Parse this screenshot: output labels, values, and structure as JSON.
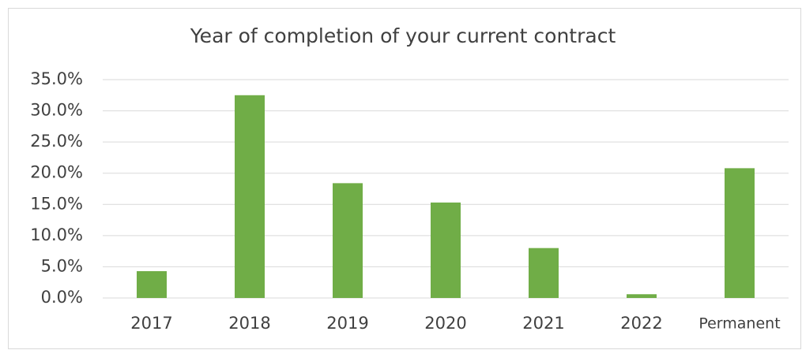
{
  "chart_data": {
    "type": "bar",
    "title": "Year of completion of your current contract",
    "categories": [
      "2017",
      "2018",
      "2019",
      "2020",
      "2021",
      "2022",
      "Permanent"
    ],
    "values": [
      4.3,
      32.5,
      18.4,
      15.3,
      8.0,
      0.6,
      20.8
    ],
    "color": "#70ad47",
    "ylim": [
      0,
      35
    ],
    "yticks": [
      {
        "value": 0,
        "label": "0.0%"
      },
      {
        "value": 5,
        "label": "5.0%"
      },
      {
        "value": 10,
        "label": "10.0%"
      },
      {
        "value": 15,
        "label": "15.0%"
      },
      {
        "value": 20,
        "label": "20.0%"
      },
      {
        "value": 25,
        "label": "25.0%"
      },
      {
        "value": 30,
        "label": "30.0%"
      },
      {
        "value": 35,
        "label": "35.0%"
      }
    ],
    "grid": true
  }
}
